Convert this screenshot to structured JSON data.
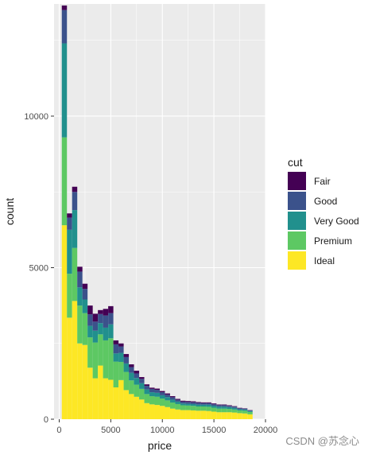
{
  "chart_data": {
    "type": "bar",
    "stacked": true,
    "bin_width": 500,
    "bin_centers": [
      500,
      1000,
      1500,
      2000,
      2500,
      3000,
      3500,
      4000,
      4500,
      5000,
      5500,
      6000,
      6500,
      7000,
      7500,
      8000,
      8500,
      9000,
      9500,
      10000,
      10500,
      11000,
      11500,
      12000,
      12500,
      13000,
      13500,
      14000,
      14500,
      15000,
      15500,
      16000,
      16500,
      17000,
      17500,
      18000,
      18500
    ],
    "series": [
      {
        "name": "Fair",
        "color": "#440154",
        "values": [
          150,
          140,
          170,
          160,
          170,
          290,
          260,
          130,
          220,
          230,
          130,
          100,
          100,
          90,
          90,
          60,
          50,
          40,
          40,
          40,
          40,
          35,
          30,
          30,
          30,
          30,
          25,
          25,
          25,
          25,
          20,
          20,
          20,
          15,
          15,
          10,
          10
        ]
      },
      {
        "name": "Good",
        "color": "#3B528B",
        "values": [
          1100,
          400,
          600,
          520,
          350,
          380,
          300,
          300,
          400,
          370,
          300,
          210,
          210,
          190,
          150,
          140,
          120,
          110,
          100,
          100,
          80,
          80,
          60,
          60,
          60,
          60,
          60,
          50,
          50,
          50,
          50,
          50,
          40,
          40,
          30,
          30,
          20
        ]
      },
      {
        "name": "Very Good",
        "color": "#21908D",
        "values": [
          3100,
          1450,
          1250,
          600,
          450,
          380,
          390,
          370,
          420,
          460,
          270,
          300,
          280,
          250,
          220,
          190,
          150,
          130,
          130,
          110,
          110,
          95,
          80,
          60,
          60,
          60,
          60,
          60,
          70,
          65,
          65,
          65,
          60,
          55,
          40,
          40,
          30
        ]
      },
      {
        "name": "Premium",
        "color": "#5DC863",
        "values": [
          2900,
          1450,
          1750,
          1250,
          1050,
          1000,
          1180,
          1030,
          1250,
          1370,
          850,
          600,
          600,
          450,
          400,
          350,
          300,
          270,
          270,
          240,
          220,
          200,
          180,
          160,
          150,
          150,
          140,
          140,
          140,
          130,
          120,
          120,
          110,
          100,
          90,
          90,
          80
        ]
      },
      {
        "name": "Ideal",
        "color": "#FDE725",
        "values": [
          6400,
          3350,
          3900,
          2500,
          2450,
          1700,
          1350,
          1770,
          1350,
          1300,
          1050,
          1290,
          960,
          830,
          740,
          650,
          530,
          490,
          470,
          440,
          400,
          350,
          320,
          300,
          300,
          290,
          280,
          280,
          270,
          250,
          230,
          230,
          230,
          220,
          200,
          190,
          160
        ]
      }
    ],
    "xlabel": "price",
    "ylabel": "count",
    "xlim": [
      -500,
      20000
    ],
    "ylim": [
      0,
      13700
    ],
    "x_ticks": [
      0,
      5000,
      10000,
      15000,
      20000
    ],
    "y_ticks": [
      0,
      5000,
      10000
    ],
    "legend_title": "cut",
    "legend_position": "right",
    "grid": true
  },
  "watermark": "CSDN @苏念心"
}
